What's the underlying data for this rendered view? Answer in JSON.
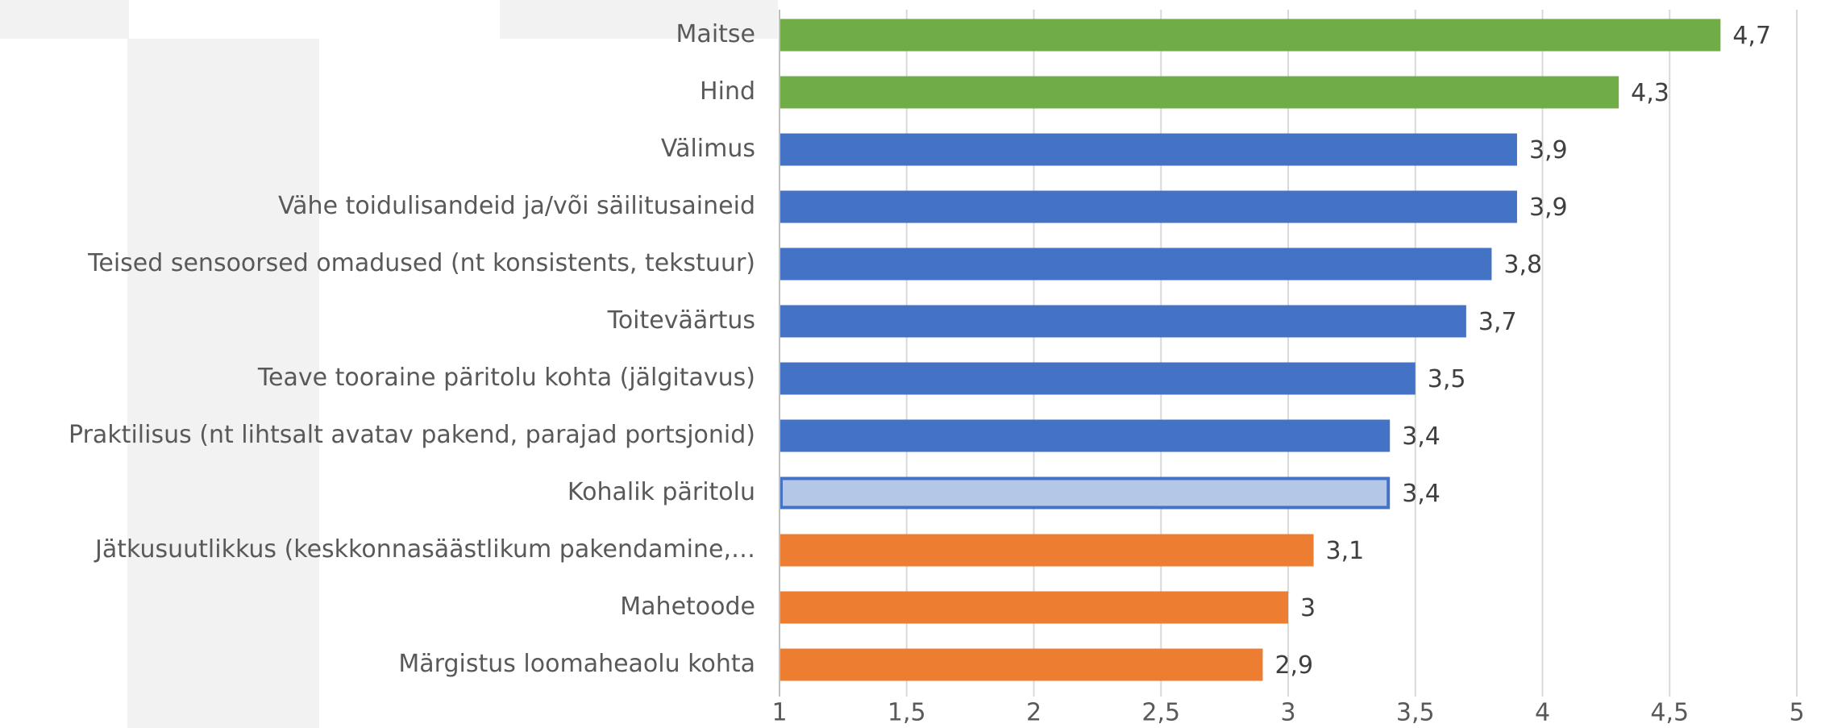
{
  "chart_data": {
    "type": "bar",
    "orientation": "horizontal",
    "categories": [
      "Maitse",
      "Hind",
      "Välimus",
      "Vähe toidulisandeid ja/või säilitusaineid",
      "Teised sensoorsed omadused (nt konsistents, tekstuur)",
      "Toiteväärtus",
      "Teave tooraine päritolu kohta (jälgitavus)",
      "Praktilisus (nt lihtsalt avatav pakend, parajad portsjonid)",
      "Kohalik päritolu",
      "Jätkusuutlikkus (keskkonnasäästlikum pakendamine,…",
      "Mahetoode",
      "Märgistus loomaheaolu kohta"
    ],
    "values": [
      4.7,
      4.3,
      3.9,
      3.9,
      3.8,
      3.7,
      3.5,
      3.4,
      3.4,
      3.1,
      3,
      2.9
    ],
    "value_labels": [
      "4,7",
      "4,3",
      "3,9",
      "3,9",
      "3,8",
      "3,7",
      "3,5",
      "3,4",
      "3,4",
      "3,1",
      "3",
      "2,9"
    ],
    "colors": [
      "#70ad47",
      "#70ad47",
      "#4472c4",
      "#4472c4",
      "#4472c4",
      "#4472c4",
      "#4472c4",
      "#4472c4",
      "#b4c7e7",
      "#ed7d31",
      "#ed7d31",
      "#ed7d31"
    ],
    "edgecolors": [
      "#70ad47",
      "#70ad47",
      "#4472c4",
      "#4472c4",
      "#4472c4",
      "#4472c4",
      "#4472c4",
      "#4472c4",
      "#4472c4",
      "#ed7d31",
      "#ed7d31",
      "#ed7d31"
    ],
    "xlim": [
      1,
      5
    ],
    "xticks": [
      1,
      {
        "value": 1.5,
        "label": "1,5"
      },
      2,
      {
        "value": 2.5,
        "label": "2,5"
      },
      3,
      {
        "value": 3.5,
        "label": "3,5"
      },
      4,
      {
        "value": 4.5,
        "label": "4,5"
      },
      5
    ],
    "grid": true
  }
}
